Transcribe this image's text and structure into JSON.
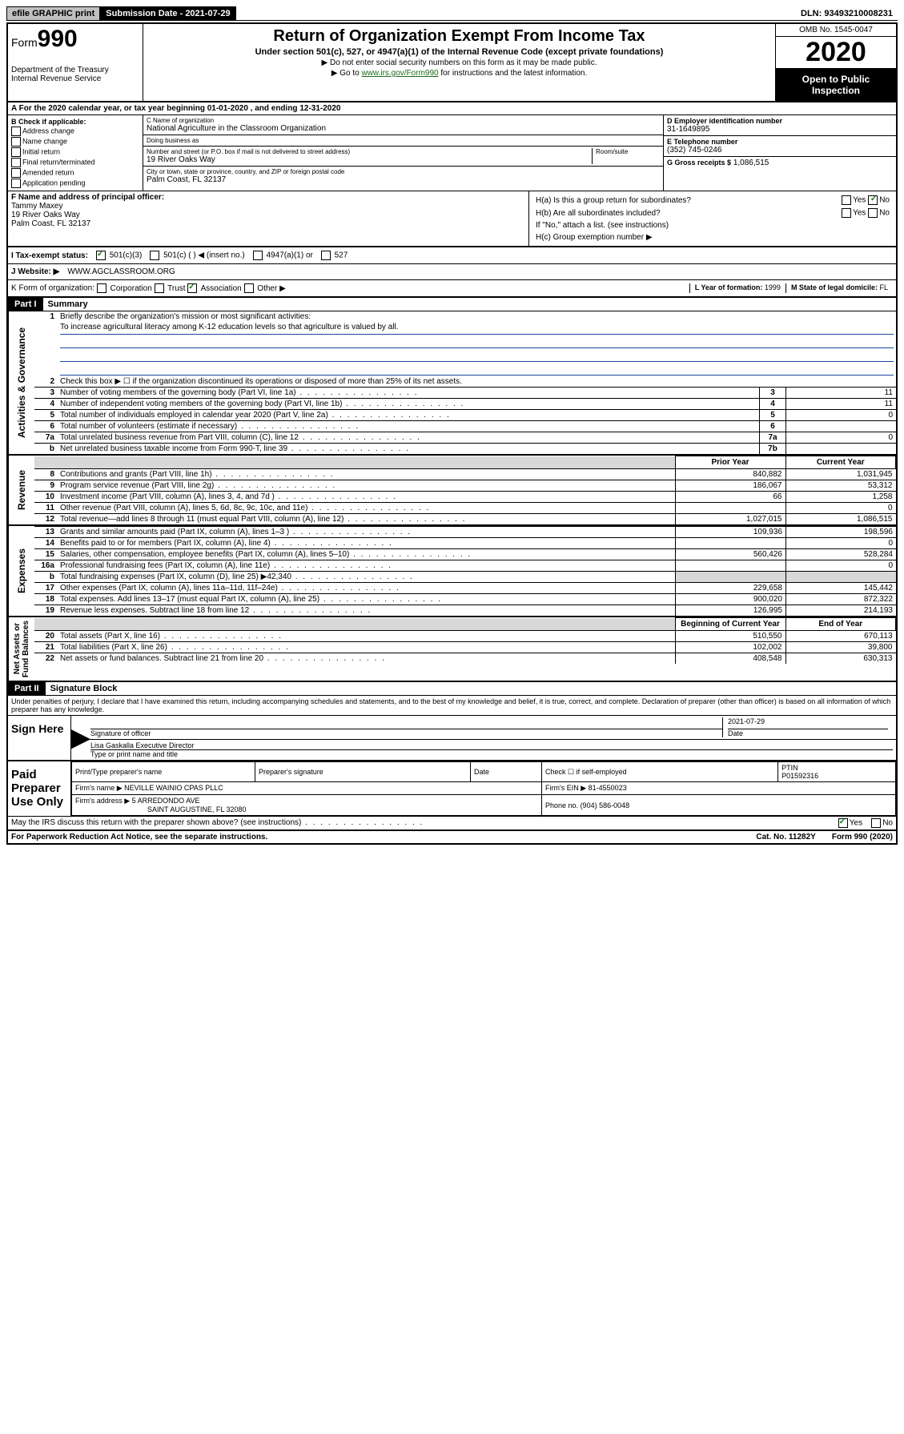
{
  "topbar": {
    "efile": "efile GRAPHIC print",
    "submission": "Submission Date - 2021-07-29",
    "dln": "DLN: 93493210008231"
  },
  "header": {
    "form_label": "Form",
    "form_number": "990",
    "dept": "Department of the Treasury\nInternal Revenue Service",
    "title": "Return of Organization Exempt From Income Tax",
    "sub": "Under section 501(c), 527, or 4947(a)(1) of the Internal Revenue Code (except private foundations)",
    "instr1": "▶ Do not enter social security numbers on this form as it may be made public.",
    "instr2_pre": "▶ Go to ",
    "instr2_link": "www.irs.gov/Form990",
    "instr2_post": " for instructions and the latest information.",
    "omb": "OMB No. 1545-0047",
    "year": "2020",
    "open": "Open to Public Inspection"
  },
  "rowA": "A For the 2020 calendar year, or tax year beginning 01-01-2020    , and ending 12-31-2020",
  "colB": {
    "hdr": "B Check if applicable:",
    "items": [
      "Address change",
      "Name change",
      "Initial return",
      "Final return/terminated",
      "Amended return",
      "Application pending"
    ]
  },
  "colC": {
    "name_lbl": "C Name of organization",
    "name": "National Agriculture in the Classroom Organization",
    "dba_lbl": "Doing business as",
    "addr_lbl": "Number and street (or P.O. box if mail is not delivered to street address)",
    "room_lbl": "Room/suite",
    "addr": "19 River Oaks Way",
    "city_lbl": "City or town, state or province, country, and ZIP or foreign postal code",
    "city": "Palm Coast, FL  32137"
  },
  "colD": {
    "ein_lbl": "D Employer identification number",
    "ein": "31-1649895",
    "tel_lbl": "E Telephone number",
    "tel": "(352) 745-0246",
    "gross_lbl": "G Gross receipts $",
    "gross": "1,086,515"
  },
  "rowF": {
    "lbl": "F Name and address of principal officer:",
    "name": "Tammy Maxey",
    "addr1": "19 River Oaks Way",
    "addr2": "Palm Coast, FL  32137"
  },
  "rowH": {
    "a": "H(a)  Is this a group return for subordinates?",
    "b": "H(b)  Are all subordinates included?",
    "b_note": "If \"No,\" attach a list. (see instructions)",
    "c": "H(c)  Group exemption number ▶",
    "yes": "Yes",
    "no": "No"
  },
  "rowI": {
    "lbl": "I Tax-exempt status:",
    "opt1": "501(c)(3)",
    "opt2": "501(c) (  ) ◀ (insert no.)",
    "opt3": "4947(a)(1) or",
    "opt4": "527"
  },
  "rowJ": {
    "lbl": "J Website: ▶",
    "val": "WWW.AGCLASSROOM.ORG"
  },
  "rowK": {
    "lbl": "K Form of organization:",
    "opts": [
      "Corporation",
      "Trust",
      "Association",
      "Other ▶"
    ],
    "l_lbl": "L Year of formation:",
    "l_val": "1999",
    "m_lbl": "M State of legal domicile:",
    "m_val": "FL"
  },
  "part1": {
    "hdr": "Part I",
    "title": "Summary",
    "q1": "Briefly describe the organization's mission or most significant activities:",
    "mission": "To increase agricultural literacy among K-12 education levels so that agriculture is valued by all.",
    "q2": "Check this box ▶ ☐  if the organization discontinued its operations or disposed of more than 25% of its net assets.",
    "lines_gov": [
      {
        "n": "3",
        "t": "Number of voting members of the governing body (Part VI, line 1a)",
        "r": "3",
        "v": "11"
      },
      {
        "n": "4",
        "t": "Number of independent voting members of the governing body (Part VI, line 1b)",
        "r": "4",
        "v": "11"
      },
      {
        "n": "5",
        "t": "Total number of individuals employed in calendar year 2020 (Part V, line 2a)",
        "r": "5",
        "v": "0"
      },
      {
        "n": "6",
        "t": "Total number of volunteers (estimate if necessary)",
        "r": "6",
        "v": ""
      },
      {
        "n": "7a",
        "t": "Total unrelated business revenue from Part VIII, column (C), line 12",
        "r": "7a",
        "v": "0"
      },
      {
        "n": "b",
        "t": "Net unrelated business taxable income from Form 990-T, line 39",
        "r": "7b",
        "v": ""
      }
    ],
    "col_hdrs": {
      "prior": "Prior Year",
      "current": "Current Year"
    },
    "lines_rev": [
      {
        "n": "8",
        "t": "Contributions and grants (Part VIII, line 1h)",
        "p": "840,882",
        "c": "1,031,945"
      },
      {
        "n": "9",
        "t": "Program service revenue (Part VIII, line 2g)",
        "p": "186,067",
        "c": "53,312"
      },
      {
        "n": "10",
        "t": "Investment income (Part VIII, column (A), lines 3, 4, and 7d )",
        "p": "66",
        "c": "1,258"
      },
      {
        "n": "11",
        "t": "Other revenue (Part VIII, column (A), lines 5, 6d, 8c, 9c, 10c, and 11e)",
        "p": "",
        "c": "0"
      },
      {
        "n": "12",
        "t": "Total revenue—add lines 8 through 11 (must equal Part VIII, column (A), line 12)",
        "p": "1,027,015",
        "c": "1,086,515"
      }
    ],
    "lines_exp": [
      {
        "n": "13",
        "t": "Grants and similar amounts paid (Part IX, column (A), lines 1–3 )",
        "p": "109,936",
        "c": "198,596"
      },
      {
        "n": "14",
        "t": "Benefits paid to or for members (Part IX, column (A), line 4)",
        "p": "",
        "c": "0"
      },
      {
        "n": "15",
        "t": "Salaries, other compensation, employee benefits (Part IX, column (A), lines 5–10)",
        "p": "560,426",
        "c": "528,284"
      },
      {
        "n": "16a",
        "t": "Professional fundraising fees (Part IX, column (A), line 11e)",
        "p": "",
        "c": "0"
      },
      {
        "n": "b",
        "t": "Total fundraising expenses (Part IX, column (D), line 25) ▶42,340",
        "p": "",
        "c": "",
        "shaded": true
      },
      {
        "n": "17",
        "t": "Other expenses (Part IX, column (A), lines 11a–11d, 11f–24e)",
        "p": "229,658",
        "c": "145,442"
      },
      {
        "n": "18",
        "t": "Total expenses. Add lines 13–17 (must equal Part IX, column (A), line 25)",
        "p": "900,020",
        "c": "872,322"
      },
      {
        "n": "19",
        "t": "Revenue less expenses. Subtract line 18 from line 12",
        "p": "126,995",
        "c": "214,193"
      }
    ],
    "col_hdrs2": {
      "begin": "Beginning of Current Year",
      "end": "End of Year"
    },
    "lines_net": [
      {
        "n": "20",
        "t": "Total assets (Part X, line 16)",
        "p": "510,550",
        "c": "670,113"
      },
      {
        "n": "21",
        "t": "Total liabilities (Part X, line 26)",
        "p": "102,002",
        "c": "39,800"
      },
      {
        "n": "22",
        "t": "Net assets or fund balances. Subtract line 21 from line 20",
        "p": "408,548",
        "c": "630,313"
      }
    ],
    "vtabs": {
      "gov": "Activities & Governance",
      "rev": "Revenue",
      "exp": "Expenses",
      "net": "Net Assets or\nFund Balances"
    }
  },
  "part2": {
    "hdr": "Part II",
    "title": "Signature Block",
    "decl": "Under penalties of perjury, I declare that I have examined this return, including accompanying schedules and statements, and to the best of my knowledge and belief, it is true, correct, and complete. Declaration of preparer (other than officer) is based on all information of which preparer has any knowledge.",
    "sign_here": "Sign Here",
    "sig_officer": "Signature of officer",
    "date": "Date",
    "date_val": "2021-07-29",
    "typed": "Lisa Gaskalla  Executive Director",
    "typed_lbl": "Type or print name and title",
    "paid": "Paid Preparer Use Only",
    "prep_name_lbl": "Print/Type preparer's name",
    "prep_sig_lbl": "Preparer's signature",
    "check_self": "Check ☐ if self-employed",
    "ptin_lbl": "PTIN",
    "ptin": "P01592316",
    "firm_name_lbl": "Firm's name    ▶",
    "firm_name": "NEVILLE WAINIO CPAS PLLC",
    "firm_ein_lbl": "Firm's EIN ▶",
    "firm_ein": "81-4550023",
    "firm_addr_lbl": "Firm's address ▶",
    "firm_addr1": "5 ARREDONDO AVE",
    "firm_addr2": "SAINT AUGUSTINE, FL  32080",
    "phone_lbl": "Phone no.",
    "phone": "(904) 586-0048"
  },
  "footer": {
    "discuss": "May the IRS discuss this return with the preparer shown above? (see instructions)",
    "yes": "Yes",
    "no": "No",
    "paperwork": "For Paperwork Reduction Act Notice, see the separate instructions.",
    "cat": "Cat. No. 11282Y",
    "form": "Form 990 (2020)"
  }
}
